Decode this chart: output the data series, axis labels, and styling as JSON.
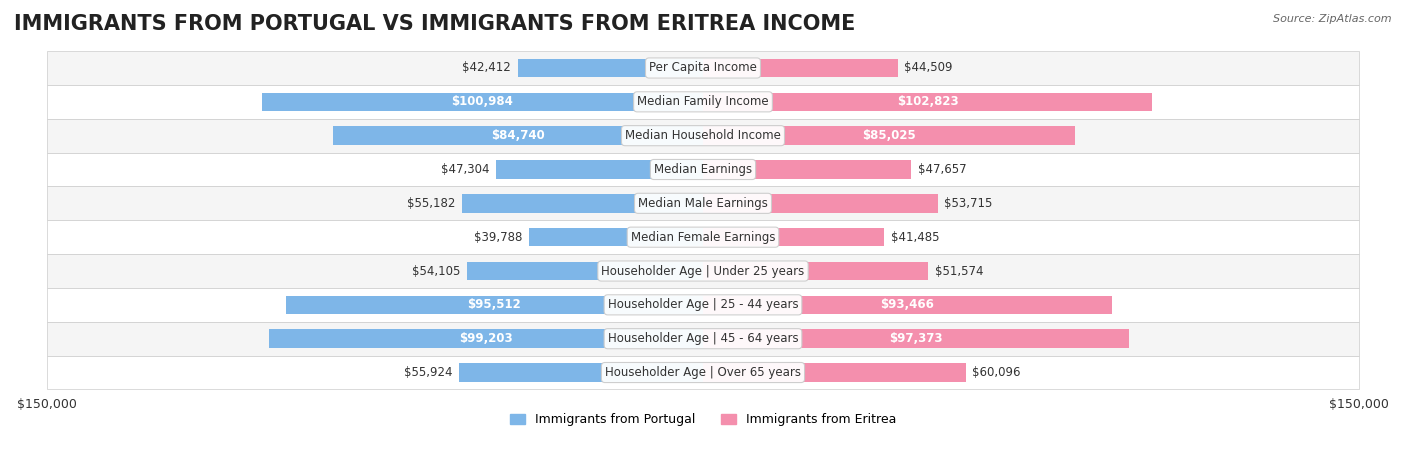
{
  "title": "IMMIGRANTS FROM PORTUGAL VS IMMIGRANTS FROM ERITREA INCOME",
  "source": "Source: ZipAtlas.com",
  "categories": [
    "Per Capita Income",
    "Median Family Income",
    "Median Household Income",
    "Median Earnings",
    "Median Male Earnings",
    "Median Female Earnings",
    "Householder Age | Under 25 years",
    "Householder Age | 25 - 44 years",
    "Householder Age | 45 - 64 years",
    "Householder Age | Over 65 years"
  ],
  "portugal_values": [
    42412,
    100984,
    84740,
    47304,
    55182,
    39788,
    54105,
    95512,
    99203,
    55924
  ],
  "eritrea_values": [
    44509,
    102823,
    85025,
    47657,
    53715,
    41485,
    51574,
    93466,
    97373,
    60096
  ],
  "portugal_labels": [
    "$42,412",
    "$100,984",
    "$84,740",
    "$47,304",
    "$55,182",
    "$39,788",
    "$54,105",
    "$95,512",
    "$99,203",
    "$55,924"
  ],
  "eritrea_labels": [
    "$44,509",
    "$102,823",
    "$85,025",
    "$47,657",
    "$53,715",
    "$41,485",
    "$51,574",
    "$93,466",
    "$97,373",
    "$60,096"
  ],
  "portugal_color": "#7EB6E8",
  "eritrea_color": "#F48FAD",
  "portugal_color_dark": "#5A9FD4",
  "eritrea_color_dark": "#E8547A",
  "max_value": 150000,
  "legend_portugal": "Immigrants from Portugal",
  "legend_eritrea": "Immigrants from Eritrea",
  "bg_row_color": "#F5F5F5",
  "bg_alt_color": "#FFFFFF",
  "title_fontsize": 15,
  "label_fontsize": 8.5,
  "category_fontsize": 8.5
}
